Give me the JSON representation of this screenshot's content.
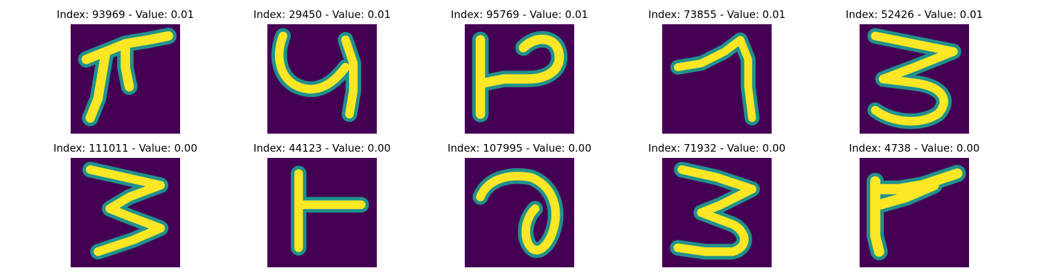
{
  "figure": {
    "background": "#ffffff",
    "colormap": {
      "name": "viridis",
      "low": "#440154",
      "mid": "#21918c",
      "high": "#fde725"
    },
    "panels": [
      {
        "title": "Index: 93969 - Value: 0.01"
      },
      {
        "title": "Index: 29450 - Value: 0.01"
      },
      {
        "title": "Index: 95769 - Value: 0.01"
      },
      {
        "title": "Index: 73855 - Value: 0.01"
      },
      {
        "title": "Index: 52426 - Value: 0.01"
      },
      {
        "title": "Index: 111011 - Value: 0.00"
      },
      {
        "title": "Index: 44123 - Value: 0.00"
      },
      {
        "title": "Index: 107995 - Value: 0.00"
      },
      {
        "title": "Index: 71932 - Value: 0.00"
      },
      {
        "title": "Index: 4738 - Value: 0.00"
      }
    ]
  }
}
